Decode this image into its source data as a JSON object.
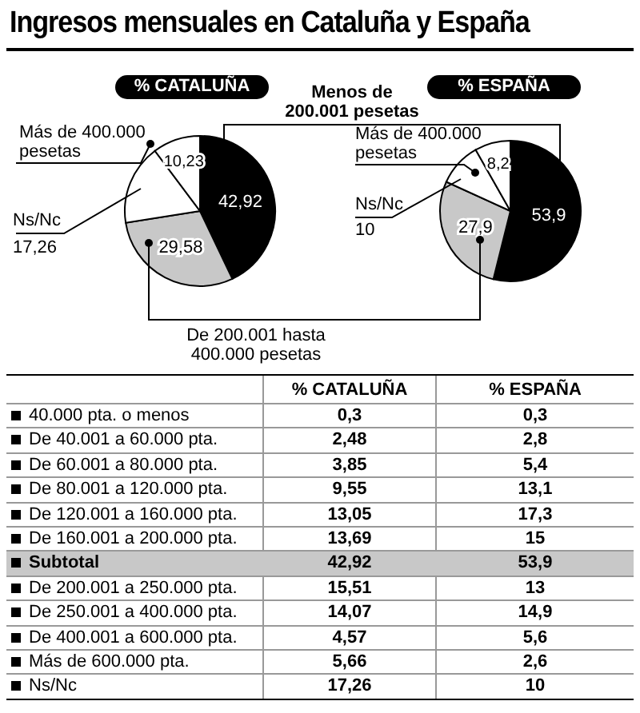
{
  "chart_data": [
    {
      "type": "pie",
      "title": "Ingresos mensuales en Cataluña y España",
      "subtitle": "% CATALUÑA",
      "categories": [
        "Menos de 200.001 pesetas",
        "De 200.001 hasta 400.000 pesetas",
        "Ns/Nc",
        "Más de 400.000 pesetas"
      ],
      "values": [
        42.92,
        29.58,
        17.26,
        10.23
      ],
      "value_labels": [
        "42,92",
        "29,58",
        "17,26",
        "10,23"
      ],
      "colors": [
        "#000000",
        "#c8c8c8",
        "#ffffff",
        "#ffffff"
      ]
    },
    {
      "type": "pie",
      "subtitle": "% ESPAÑA",
      "categories": [
        null,
        null,
        "Ns/Nc",
        "Más de 400.000 pesetas"
      ],
      "values": [
        53.9,
        27.9,
        10,
        8.2
      ],
      "value_labels": [
        "53,9",
        "27,9",
        "10",
        "8,2"
      ],
      "colors": [
        "#000000",
        "#c8c8c8",
        "#ffffff",
        "#ffffff"
      ]
    },
    {
      "type": "other",
      "categories": [
        "40.000 pta. o menos",
        "De 40.001 a 60.000 pta.",
        "De 60.001 a 80.000 pta.",
        "De 80.001 a 120.000 pta.",
        "De 120.001 a 160.000 pta.",
        "De 160.001 a 200.000 pta.",
        "Subtotal",
        "De 200.001 a 250.000 pta.",
        "De 250.001 a 400.000 pta.",
        "De 400.001 a 600.000 pta.",
        "Más de 600.000 pta.",
        "Ns/Nc"
      ],
      "series": [
        {
          "name": "% CATALUÑA",
          "values": [
            0.3,
            2.48,
            3.85,
            9.55,
            13.05,
            13.69,
            42.92,
            15.51,
            14.07,
            4.57,
            5.66,
            17.26
          ],
          "value_labels": [
            "0,3",
            "2,48",
            "3,85",
            "9,55",
            "13,05",
            "13,69",
            "42,92",
            "15,51",
            "14,07",
            "4,57",
            "5,66",
            "17,26"
          ]
        },
        {
          "name": "% ESPAÑA",
          "values": [
            0.3,
            2.8,
            5.4,
            13.1,
            17.3,
            15,
            53.9,
            13,
            14.9,
            5.6,
            2.6,
            10
          ],
          "value_labels": [
            "0,3",
            "2,8",
            "5,4",
            "13,1",
            "17,3",
            "15",
            "53,9",
            "13",
            "14,9",
            "5,6",
            "2,6",
            "10"
          ]
        }
      ]
    }
  ]
}
